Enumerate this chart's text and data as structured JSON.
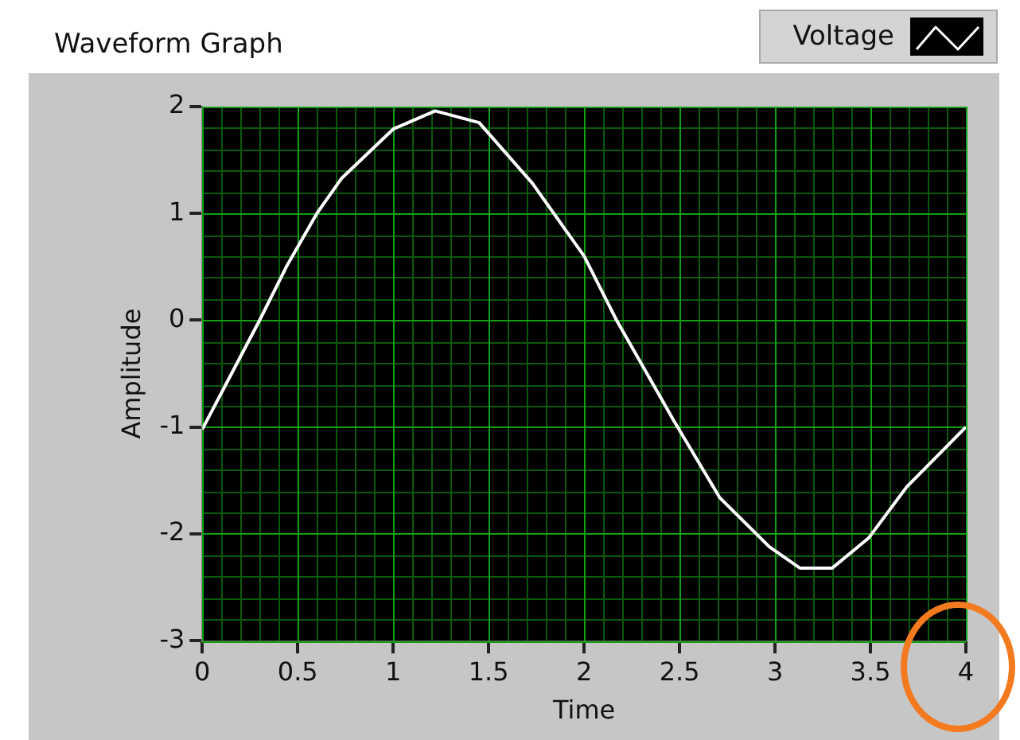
{
  "chart_data": {
    "type": "line",
    "title": "Waveform Graph",
    "xlabel": "Time",
    "ylabel": "Amplitude",
    "series": [
      {
        "name": "Voltage",
        "color": "#ffffff",
        "x": [
          0,
          0.1,
          0.3,
          0.44,
          0.6,
          0.73,
          1.0,
          1.22,
          1.45,
          1.73,
          2.0,
          2.17,
          2.47,
          2.71,
          2.97,
          3.13,
          3.3,
          3.49,
          3.69,
          4.0
        ],
        "values": [
          -1.02,
          -0.68,
          0,
          0.5,
          1.0,
          1.33,
          1.79,
          1.96,
          1.85,
          1.28,
          0.6,
          0,
          -0.94,
          -1.66,
          -2.12,
          -2.32,
          -2.32,
          -2.04,
          -1.56,
          -1.0
        ]
      }
    ],
    "xlim": [
      0,
      4
    ],
    "xticks": [
      0,
      {
        "value": 0.1,
        "label": null
      },
      {
        "value": 0.2,
        "label": null
      },
      {
        "value": 0.3,
        "label": null
      },
      {
        "value": 0.4,
        "label": null
      },
      0.5,
      {
        "value": 0.6,
        "label": null
      },
      {
        "value": 0.7,
        "label": null
      },
      {
        "value": 0.8,
        "label": null
      },
      {
        "value": 0.9,
        "label": null
      },
      1,
      {
        "value": 1.1,
        "label": null
      },
      {
        "value": 1.2,
        "label": null
      },
      {
        "value": 1.3,
        "label": null
      },
      {
        "value": 1.4,
        "label": null
      },
      1.5,
      {
        "value": 1.6,
        "label": null
      },
      {
        "value": 1.7,
        "label": null
      },
      {
        "value": 1.8,
        "label": null
      },
      {
        "value": 1.9,
        "label": null
      },
      2,
      {
        "value": 2.1,
        "label": null
      },
      {
        "value": 2.2,
        "label": null
      },
      {
        "value": 2.3,
        "label": null
      },
      {
        "value": 2.4,
        "label": null
      },
      2.5,
      {
        "value": 2.6,
        "label": null
      },
      {
        "value": 2.7,
        "label": null
      },
      {
        "value": 2.8,
        "label": null
      },
      {
        "value": 2.9,
        "label": null
      },
      3,
      {
        "value": 3.1,
        "label": null
      },
      {
        "value": 3.2,
        "label": null
      },
      {
        "value": 3.3,
        "label": null
      },
      {
        "value": 3.4,
        "label": null
      },
      3.5,
      {
        "value": 3.6,
        "label": null
      },
      {
        "value": 3.7,
        "label": null
      },
      {
        "value": 3.8,
        "label": null
      },
      {
        "value": 3.9,
        "label": null
      },
      4
    ],
    "ylim": [
      -3,
      2
    ],
    "yticks": [
      -3,
      {
        "value": -2.8,
        "label": null
      },
      {
        "value": -2.6,
        "label": null
      },
      {
        "value": -2.4,
        "label": null
      },
      {
        "value": -2.2,
        "label": null
      },
      -2,
      {
        "value": -1.8,
        "label": null
      },
      {
        "value": -1.6,
        "label": null
      },
      {
        "value": -1.4,
        "label": null
      },
      {
        "value": -1.2,
        "label": null
      },
      -1,
      {
        "value": -0.8,
        "label": null
      },
      {
        "value": -0.6,
        "label": null
      },
      {
        "value": -0.4,
        "label": null
      },
      {
        "value": -0.2,
        "label": null
      },
      0,
      {
        "value": 0.2,
        "label": null
      },
      {
        "value": 0.4,
        "label": null
      },
      {
        "value": 0.6,
        "label": null
      },
      {
        "value": 0.8,
        "label": null
      },
      1,
      {
        "value": 1.2,
        "label": null
      },
      {
        "value": 1.4,
        "label": null
      },
      {
        "value": 1.6,
        "label": null
      },
      {
        "value": 1.8,
        "label": null
      },
      2
    ],
    "grid": true,
    "legend": "top right",
    "marker": "none",
    "line_style": "solid"
  }
}
